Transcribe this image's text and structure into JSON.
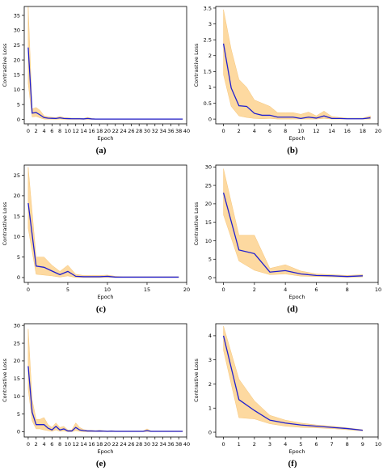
{
  "chart_data": [
    {
      "panel": "(a)",
      "type": "line",
      "xlabel": "Epoch",
      "ylabel": "Contrastive Loss",
      "xlim": [
        -1,
        40
      ],
      "ylim": [
        -1.5,
        38
      ],
      "xticks": [
        0,
        2,
        4,
        6,
        8,
        10,
        12,
        14,
        16,
        18,
        20,
        22,
        24,
        26,
        28,
        30,
        32,
        34,
        36,
        38,
        40
      ],
      "yticks": [
        0,
        5,
        10,
        15,
        20,
        25,
        30,
        35
      ],
      "x": [
        0,
        1,
        2,
        3,
        4,
        5,
        6,
        7,
        8,
        9,
        10,
        11,
        12,
        13,
        14,
        15,
        16,
        17,
        18,
        19,
        20,
        21,
        22,
        23,
        24,
        25,
        26,
        27,
        28,
        29,
        30,
        31,
        32,
        33,
        34,
        35,
        36,
        37,
        38,
        39
      ],
      "mean": [
        24.2,
        2.1,
        2.3,
        1.5,
        0.6,
        0.4,
        0.35,
        0.3,
        0.5,
        0.3,
        0.25,
        0.2,
        0.2,
        0.2,
        0.15,
        0.3,
        0.15,
        0.1,
        0.1,
        0.1,
        0.1,
        0.1,
        0.1,
        0.1,
        0.1,
        0.1,
        0.1,
        0.1,
        0.1,
        0.1,
        0.1,
        0.1,
        0.1,
        0.1,
        0.1,
        0.1,
        0.1,
        0.1,
        0.1,
        0.1
      ],
      "upper": [
        38.0,
        3.5,
        4.0,
        3.0,
        1.2,
        0.9,
        0.7,
        0.6,
        1.0,
        0.6,
        0.5,
        0.4,
        0.4,
        0.4,
        0.3,
        0.7,
        0.3,
        0.2,
        0.2,
        0.2,
        0.2,
        0.2,
        0.2,
        0.2,
        0.2,
        0.2,
        0.2,
        0.2,
        0.2,
        0.2,
        0.2,
        0.2,
        0.2,
        0.2,
        0.2,
        0.2,
        0.2,
        0.2,
        0.2,
        0.2
      ],
      "lower": [
        12.0,
        0.8,
        1.0,
        0.5,
        0.1,
        0.05,
        0.05,
        0.0,
        0.1,
        0.0,
        0.0,
        0.0,
        0.0,
        0.0,
        0.0,
        0.0,
        0.0,
        0.0,
        0.0,
        0.0,
        0.0,
        0.0,
        0.0,
        0.0,
        0.0,
        0.0,
        0.0,
        0.0,
        0.0,
        0.0,
        0.0,
        0.0,
        0.0,
        0.0,
        0.0,
        0.0,
        0.0,
        0.0,
        0.0,
        0.0
      ]
    },
    {
      "panel": "(b)",
      "type": "line",
      "xlabel": "Epoch",
      "ylabel": "Contrastive Loss",
      "xlim": [
        -1,
        20
      ],
      "ylim": [
        -0.15,
        3.55
      ],
      "xticks": [
        0,
        2,
        4,
        6,
        8,
        10,
        12,
        14,
        16,
        18,
        20
      ],
      "yticks": [
        0.0,
        0.5,
        1.0,
        1.5,
        2.0,
        2.5,
        3.0,
        3.5
      ],
      "x": [
        0,
        1,
        2,
        3,
        4,
        5,
        6,
        7,
        8,
        9,
        10,
        11,
        12,
        13,
        14,
        15,
        16,
        17,
        18,
        19
      ],
      "mean": [
        2.38,
        0.98,
        0.42,
        0.4,
        0.18,
        0.12,
        0.12,
        0.06,
        0.06,
        0.06,
        0.02,
        0.06,
        0.03,
        0.1,
        0.02,
        0.02,
        0.01,
        0.01,
        0.01,
        0.04
      ],
      "upper": [
        3.45,
        2.2,
        1.25,
        1.0,
        0.6,
        0.5,
        0.4,
        0.2,
        0.2,
        0.2,
        0.15,
        0.22,
        0.1,
        0.25,
        0.08,
        0.05,
        0.03,
        0.03,
        0.03,
        0.1
      ],
      "lower": [
        1.4,
        0.4,
        0.1,
        0.05,
        0.02,
        0.01,
        0.02,
        0.0,
        0.0,
        0.0,
        0.0,
        0.0,
        0.0,
        0.02,
        0.0,
        0.0,
        0.0,
        0.0,
        0.0,
        0.0
      ]
    },
    {
      "panel": "(c)",
      "type": "line",
      "xlabel": "Epoch",
      "ylabel": "Contrastive Loss",
      "xlim": [
        -0.5,
        20
      ],
      "ylim": [
        -1.2,
        27.5
      ],
      "xticks": [
        0,
        5,
        10,
        15,
        20
      ],
      "yticks": [
        0,
        5,
        10,
        15,
        20,
        25
      ],
      "x": [
        0,
        1,
        2,
        3,
        4,
        5,
        6,
        7,
        8,
        9,
        10,
        11,
        12,
        13,
        14,
        15,
        16,
        17,
        18,
        19
      ],
      "mean": [
        18.2,
        2.8,
        2.5,
        1.6,
        0.7,
        1.5,
        0.3,
        0.2,
        0.2,
        0.2,
        0.3,
        0.1,
        0.1,
        0.1,
        0.1,
        0.1,
        0.1,
        0.1,
        0.1,
        0.1
      ],
      "upper": [
        27.0,
        5.0,
        5.0,
        3.0,
        1.5,
        3.0,
        0.8,
        0.5,
        0.5,
        0.5,
        0.6,
        0.3,
        0.2,
        0.2,
        0.2,
        0.2,
        0.2,
        0.2,
        0.2,
        0.2
      ],
      "lower": [
        12.0,
        0.8,
        0.6,
        0.4,
        0.1,
        0.4,
        0.0,
        0.0,
        0.0,
        0.0,
        0.05,
        0.0,
        0.0,
        0.0,
        0.0,
        0.0,
        0.0,
        0.0,
        0.0,
        0.0
      ]
    },
    {
      "panel": "(d)",
      "type": "line",
      "xlabel": "Epoch",
      "ylabel": "Contrastive Loss",
      "xlim": [
        -0.5,
        10
      ],
      "ylim": [
        -1.3,
        30.5
      ],
      "xticks": [
        0,
        2,
        4,
        6,
        8,
        10
      ],
      "yticks": [
        0,
        5,
        10,
        15,
        20,
        25,
        30
      ],
      "x": [
        0,
        1,
        2,
        3,
        4,
        5,
        6,
        7,
        8,
        9
      ],
      "mean": [
        23.0,
        7.5,
        6.5,
        1.5,
        1.9,
        1.0,
        0.6,
        0.5,
        0.3,
        0.5
      ],
      "upper": [
        29.5,
        11.5,
        11.5,
        2.5,
        3.5,
        1.8,
        1.0,
        0.8,
        0.6,
        0.8
      ],
      "lower": [
        17.0,
        4.5,
        2.0,
        0.8,
        1.0,
        0.4,
        0.3,
        0.2,
        0.1,
        0.2
      ]
    },
    {
      "panel": "(e)",
      "type": "line",
      "xlabel": "Epoch",
      "ylabel": "Contrastive Loss",
      "xlim": [
        -1,
        40
      ],
      "ylim": [
        -1.5,
        30.5
      ],
      "xticks": [
        0,
        2,
        4,
        6,
        8,
        10,
        12,
        14,
        16,
        18,
        20,
        22,
        24,
        26,
        28,
        30,
        32,
        34,
        36,
        38,
        40
      ],
      "yticks": [
        0,
        5,
        10,
        15,
        20,
        25,
        30
      ],
      "x": [
        0,
        1,
        2,
        3,
        4,
        5,
        6,
        7,
        8,
        9,
        10,
        11,
        12,
        13,
        14,
        15,
        16,
        17,
        18,
        19,
        20,
        21,
        22,
        23,
        24,
        25,
        26,
        27,
        28,
        29,
        30,
        31,
        32,
        33,
        34,
        35,
        36,
        37,
        38,
        39
      ],
      "mean": [
        18.5,
        5.5,
        2.0,
        2.0,
        2.0,
        1.0,
        0.5,
        1.5,
        0.5,
        0.8,
        0.2,
        0.2,
        1.2,
        0.5,
        0.3,
        0.2,
        0.2,
        0.15,
        0.2,
        0.15,
        0.1,
        0.15,
        0.1,
        0.1,
        0.1,
        0.1,
        0.1,
        0.1,
        0.1,
        0.1,
        0.3,
        0.1,
        0.1,
        0.1,
        0.1,
        0.1,
        0.1,
        0.1,
        0.1,
        0.1
      ],
      "upper": [
        29.0,
        9.0,
        3.5,
        3.5,
        4.0,
        2.0,
        1.2,
        2.5,
        1.2,
        1.5,
        0.5,
        0.5,
        2.5,
        1.2,
        0.6,
        0.4,
        0.4,
        0.3,
        0.4,
        0.3,
        0.2,
        0.3,
        0.2,
        0.2,
        0.2,
        0.2,
        0.2,
        0.2,
        0.2,
        0.2,
        0.8,
        0.2,
        0.2,
        0.2,
        0.2,
        0.2,
        0.2,
        0.2,
        0.2,
        0.2
      ],
      "lower": [
        12.0,
        3.0,
        0.8,
        0.8,
        0.5,
        0.3,
        0.1,
        0.5,
        0.1,
        0.2,
        0.0,
        0.0,
        0.3,
        0.1,
        0.0,
        0.0,
        0.0,
        0.0,
        0.0,
        0.0,
        0.0,
        0.0,
        0.0,
        0.0,
        0.0,
        0.0,
        0.0,
        0.0,
        0.0,
        0.0,
        0.05,
        0.0,
        0.0,
        0.0,
        0.0,
        0.0,
        0.0,
        0.0,
        0.0,
        0.0
      ]
    },
    {
      "panel": "(f)",
      "type": "line",
      "xlabel": "Epoch",
      "ylabel": "Contrastive Loss",
      "xlim": [
        -0.5,
        10
      ],
      "ylim": [
        -0.2,
        4.5
      ],
      "xticks": [
        0,
        1,
        2,
        3,
        4,
        5,
        6,
        7,
        8,
        9,
        10
      ],
      "yticks": [
        0,
        1,
        2,
        3,
        4
      ],
      "x": [
        0,
        1,
        2,
        3,
        4,
        5,
        6,
        7,
        8,
        9
      ],
      "mean": [
        4.0,
        1.35,
        0.9,
        0.5,
        0.38,
        0.3,
        0.25,
        0.2,
        0.15,
        0.08
      ],
      "upper": [
        4.4,
        2.2,
        1.3,
        0.7,
        0.5,
        0.38,
        0.3,
        0.25,
        0.18,
        0.1
      ],
      "lower": [
        3.4,
        0.6,
        0.55,
        0.35,
        0.25,
        0.2,
        0.18,
        0.15,
        0.1,
        0.05
      ]
    }
  ],
  "colors": {
    "mean_line": "#1f1fd0",
    "band": "#fdd9a0",
    "band_edge": "#f6c67a",
    "axis": "#000000"
  }
}
